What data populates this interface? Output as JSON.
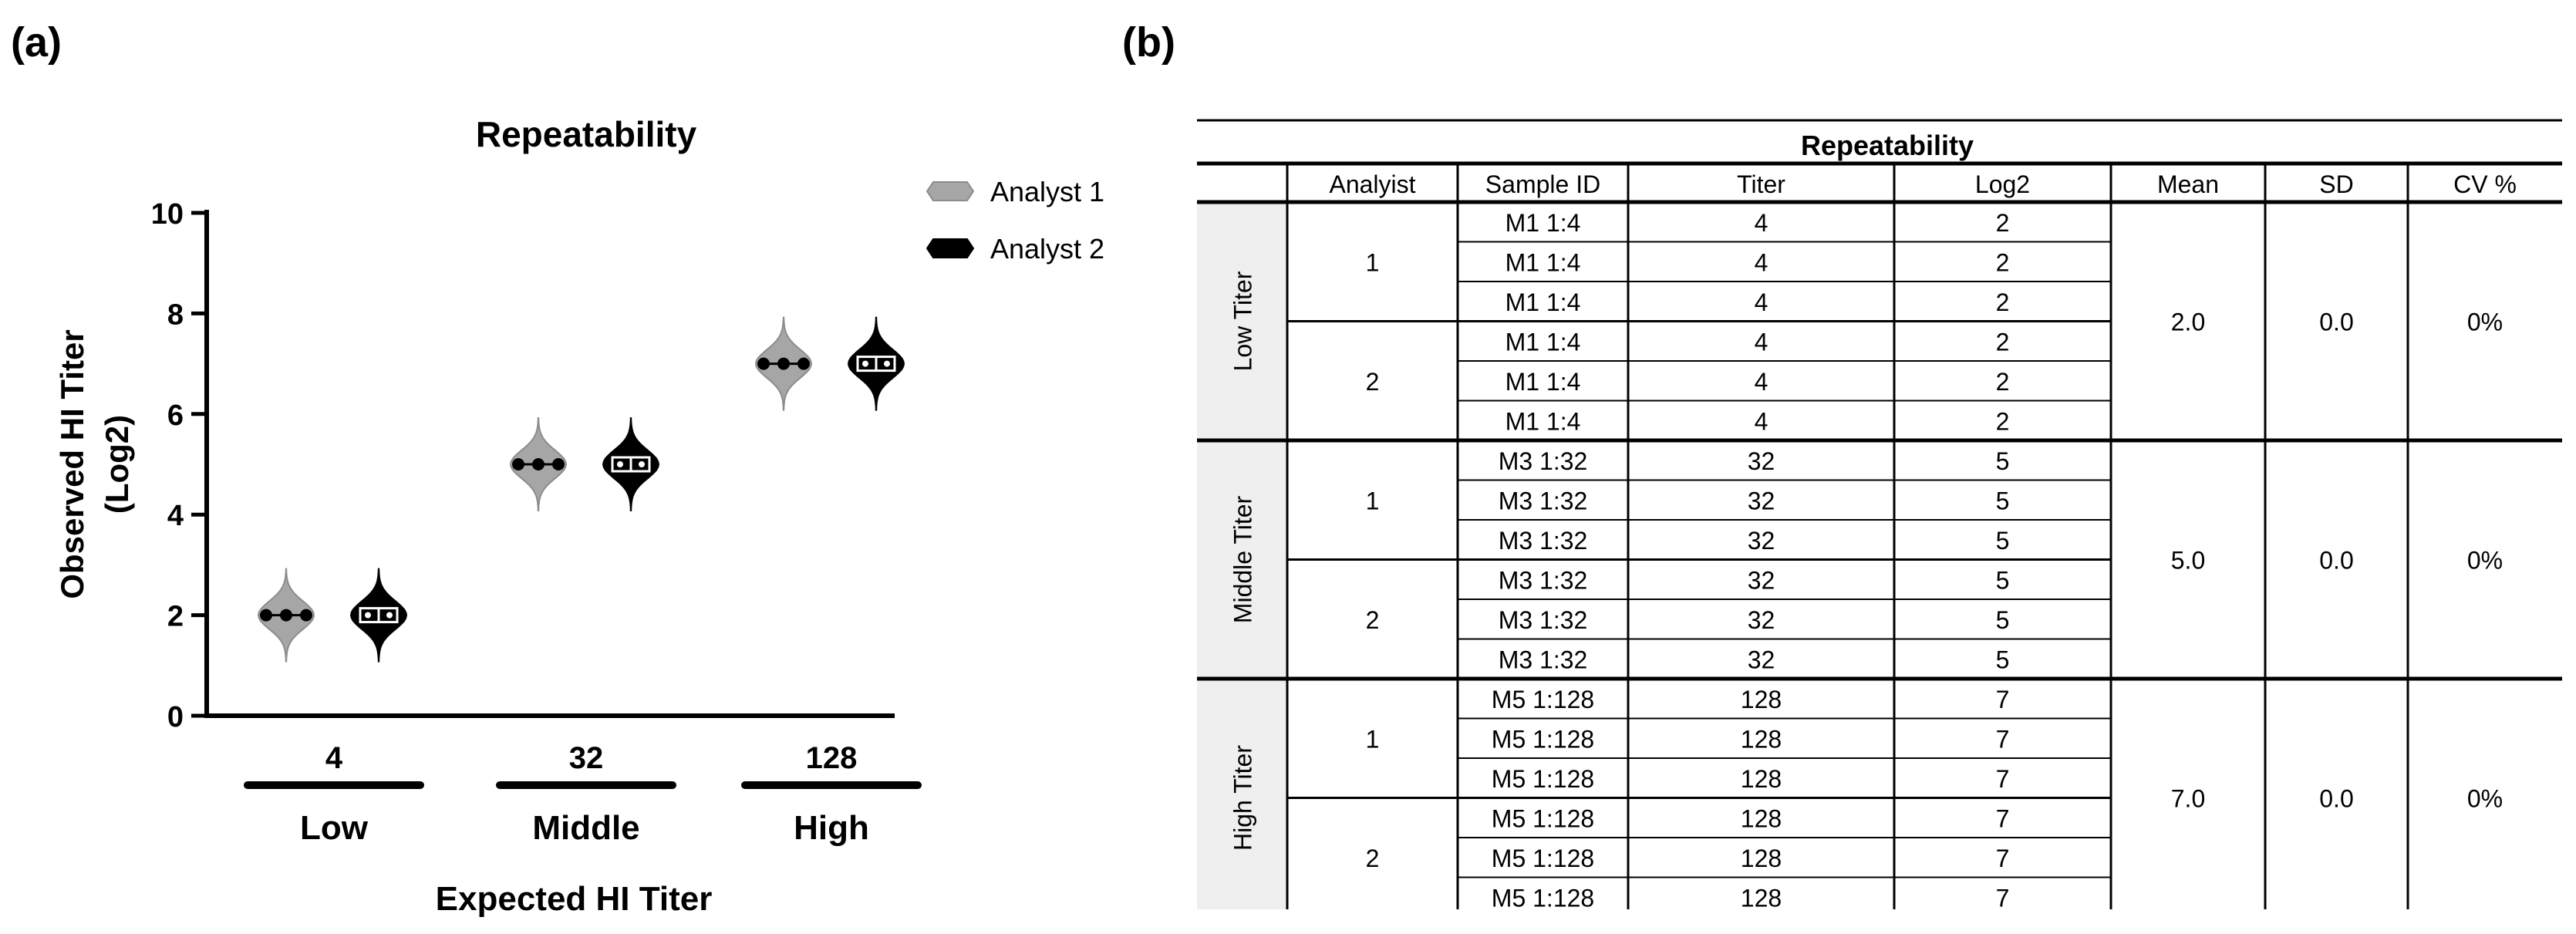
{
  "panel_labels": {
    "a": "(a)",
    "b": "(b)"
  },
  "chart_data": {
    "type": "violin",
    "title": "Repeatability",
    "xlabel": "Expected HI Titer",
    "ylabel_line1": "Observed HI Titer",
    "ylabel_line2": "(Log2)",
    "ylim": [
      0,
      10
    ],
    "yticks": [
      0,
      2,
      4,
      6,
      8,
      10
    ],
    "categories": [
      "4",
      "32",
      "128"
    ],
    "group_labels": [
      "Low",
      "Middle",
      "High"
    ],
    "series": [
      {
        "name": "Analyst 1",
        "color": "#a6a6a6",
        "values": [
          2,
          5,
          7
        ]
      },
      {
        "name": "Analyst 2",
        "color": "#000000",
        "values": [
          2,
          5,
          7
        ]
      }
    ],
    "legend_position": "top-right",
    "grid": false
  },
  "table": {
    "title": "Repeatability",
    "headers": [
      "Analyist",
      "Sample ID",
      "Titer",
      "Log2",
      "Mean",
      "SD",
      "CV %"
    ],
    "groups": [
      {
        "label": "Low Titer",
        "mean": "2.0",
        "sd": "0.0",
        "cv": "0%",
        "analysts": [
          {
            "analyst": "1",
            "rows": [
              [
                "M1 1:4",
                "4",
                "2"
              ],
              [
                "M1 1:4",
                "4",
                "2"
              ],
              [
                "M1 1:4",
                "4",
                "2"
              ]
            ]
          },
          {
            "analyst": "2",
            "rows": [
              [
                "M1 1:4",
                "4",
                "2"
              ],
              [
                "M1 1:4",
                "4",
                "2"
              ],
              [
                "M1 1:4",
                "4",
                "2"
              ]
            ]
          }
        ]
      },
      {
        "label": "Middle Titer",
        "mean": "5.0",
        "sd": "0.0",
        "cv": "0%",
        "analysts": [
          {
            "analyst": "1",
            "rows": [
              [
                "M3 1:32",
                "32",
                "5"
              ],
              [
                "M3 1:32",
                "32",
                "5"
              ],
              [
                "M3 1:32",
                "32",
                "5"
              ]
            ]
          },
          {
            "analyst": "2",
            "rows": [
              [
                "M3 1:32",
                "32",
                "5"
              ],
              [
                "M3 1:32",
                "32",
                "5"
              ],
              [
                "M3 1:32",
                "32",
                "5"
              ]
            ]
          }
        ]
      },
      {
        "label": "High Titer",
        "mean": "7.0",
        "sd": "0.0",
        "cv": "0%",
        "analysts": [
          {
            "analyst": "1",
            "rows": [
              [
                "M5 1:128",
                "128",
                "7"
              ],
              [
                "M5 1:128",
                "128",
                "7"
              ],
              [
                "M5 1:128",
                "128",
                "7"
              ]
            ]
          },
          {
            "analyst": "2",
            "rows": [
              [
                "M5 1:128",
                "128",
                "7"
              ],
              [
                "M5 1:128",
                "128",
                "7"
              ],
              [
                "M5 1:128",
                "128",
                "7"
              ]
            ]
          }
        ]
      }
    ]
  }
}
